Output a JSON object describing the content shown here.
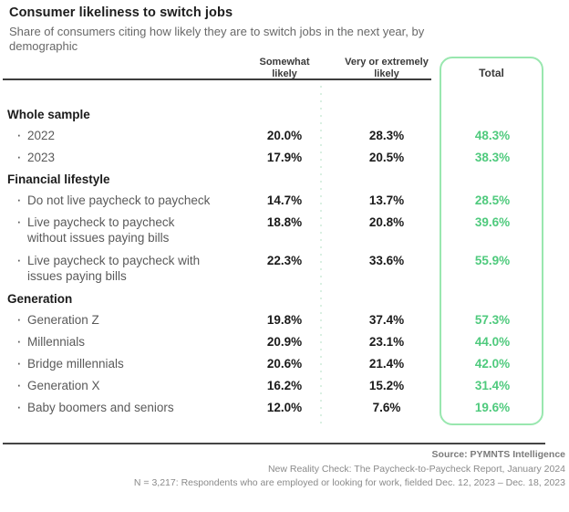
{
  "title": "Consumer likeliness to switch jobs",
  "subtitle": "Share of consumers citing how likely they are to switch jobs in the next year, by demographic",
  "table": {
    "columns": [
      "Somewhat likely",
      "Very or extremely likely",
      "Total"
    ],
    "bullet": "·",
    "sections": [
      {
        "header": "Whole sample",
        "rows": [
          {
            "label": "2022",
            "two_line": false,
            "values": [
              "20.0%",
              "28.3%",
              "48.3%"
            ]
          },
          {
            "label": "2023",
            "two_line": false,
            "values": [
              "17.9%",
              "20.5%",
              "38.3%"
            ]
          }
        ]
      },
      {
        "header": "Financial lifestyle",
        "rows": [
          {
            "label": "Do not live paycheck to paycheck",
            "two_line": false,
            "values": [
              "14.7%",
              "13.7%",
              "28.5%"
            ]
          },
          {
            "label": "Live paycheck to paycheck without issues paying bills",
            "two_line": true,
            "values": [
              "18.8%",
              "20.8%",
              "39.6%"
            ]
          },
          {
            "label": "Live paycheck to paycheck with issues paying bills",
            "two_line": true,
            "values": [
              "22.3%",
              "33.6%",
              "55.9%"
            ]
          }
        ]
      },
      {
        "header": "Generation",
        "rows": [
          {
            "label": "Generation Z",
            "two_line": false,
            "values": [
              "19.8%",
              "37.4%",
              "57.3%"
            ]
          },
          {
            "label": "Millennials",
            "two_line": false,
            "values": [
              "20.9%",
              "23.1%",
              "44.0%"
            ]
          },
          {
            "label": "Bridge millennials",
            "two_line": false,
            "values": [
              "20.6%",
              "21.4%",
              "42.0%"
            ]
          },
          {
            "label": "Generation X",
            "two_line": false,
            "values": [
              "16.2%",
              "15.2%",
              "31.4%"
            ]
          },
          {
            "label": "Baby boomers and seniors",
            "two_line": false,
            "values": [
              "12.0%",
              "7.6%",
              "19.6%"
            ]
          }
        ]
      }
    ]
  },
  "footer": {
    "source": "Source: PYMNTS Intelligence",
    "report": "New Reality Check: The Paycheck-to-Paycheck Report, January 2024",
    "sample": "N = 3,217: Respondents who are employed or looking for work, fielded Dec. 12, 2023 – Dec. 18, 2023"
  },
  "colors": {
    "total_text_green": "#4fca7d",
    "box_border_green": "#99e7af",
    "dotted_divider_green": "#d9f0e2",
    "rule_dark": "#3d3d3d",
    "title_dark": "#1c1c1c",
    "label_gray": "#5a5a5a",
    "footer_gray": "#8a8a8a"
  },
  "chart_data": {
    "type": "table",
    "title": "Consumer likeliness to switch jobs",
    "subtitle": "Share of consumers citing how likely they are to switch jobs in the next year, by demographic",
    "columns": [
      "Somewhat likely",
      "Very or extremely likely",
      "Total"
    ],
    "units": "%",
    "groups": [
      {
        "name": "Whole sample",
        "rows": [
          {
            "label": "2022",
            "somewhat_likely": 20.0,
            "very_or_extremely_likely": 28.3,
            "total": 48.3
          },
          {
            "label": "2023",
            "somewhat_likely": 17.9,
            "very_or_extremely_likely": 20.5,
            "total": 38.3
          }
        ]
      },
      {
        "name": "Financial lifestyle",
        "rows": [
          {
            "label": "Do not live paycheck to paycheck",
            "somewhat_likely": 14.7,
            "very_or_extremely_likely": 13.7,
            "total": 28.5
          },
          {
            "label": "Live paycheck to paycheck without issues paying bills",
            "somewhat_likely": 18.8,
            "very_or_extremely_likely": 20.8,
            "total": 39.6
          },
          {
            "label": "Live paycheck to paycheck with issues paying bills",
            "somewhat_likely": 22.3,
            "very_or_extremely_likely": 33.6,
            "total": 55.9
          }
        ]
      },
      {
        "name": "Generation",
        "rows": [
          {
            "label": "Generation Z",
            "somewhat_likely": 19.8,
            "very_or_extremely_likely": 37.4,
            "total": 57.3
          },
          {
            "label": "Millennials",
            "somewhat_likely": 20.9,
            "very_or_extremely_likely": 23.1,
            "total": 44.0
          },
          {
            "label": "Bridge millennials",
            "somewhat_likely": 20.6,
            "very_or_extremely_likely": 21.4,
            "total": 42.0
          },
          {
            "label": "Generation X",
            "somewhat_likely": 16.2,
            "very_or_extremely_likely": 15.2,
            "total": 31.4
          },
          {
            "label": "Baby boomers and seniors",
            "somewhat_likely": 12.0,
            "very_or_extremely_likely": 7.6,
            "total": 19.6
          }
        ]
      }
    ],
    "source": "PYMNTS Intelligence, New Reality Check: The Paycheck-to-Paycheck Report, January 2024",
    "sample_note": "N = 3,217: Respondents who are employed or looking for work, fielded Dec. 12, 2023 – Dec. 18, 2023"
  }
}
